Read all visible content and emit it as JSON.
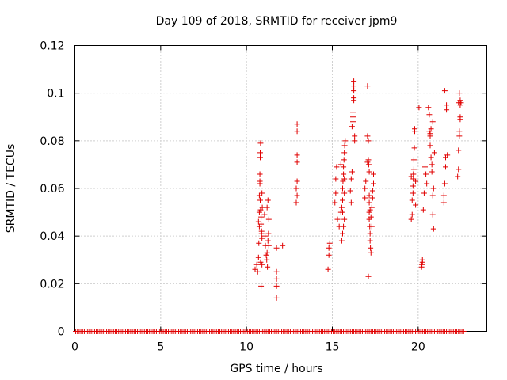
{
  "chart_data": {
    "type": "scatter",
    "title": "Day 109 of 2018, SRMTID for receiver jpm9",
    "xlabel": "GPS time / hours",
    "ylabel": "SRMTID / TECUs",
    "xlim": [
      0,
      24
    ],
    "ylim": [
      0,
      0.12
    ],
    "xticks": [
      0,
      5,
      10,
      15,
      20
    ],
    "xtick_labels": [
      "0",
      "5",
      "10",
      "15",
      "20"
    ],
    "yticks": [
      0,
      0.02,
      0.04,
      0.06,
      0.08,
      0.1,
      0.12
    ],
    "ytick_labels": [
      "0",
      "0.02",
      "0.04",
      "0.06",
      "0.08",
      "0.1",
      "0.12"
    ],
    "grid": true,
    "marker": "+",
    "series": [
      {
        "name": "SRMTID",
        "color": "#e00000",
        "baseline": {
          "x_start": 0.05,
          "x_end": 22.65,
          "x_step": 0.1,
          "y": 0
        },
        "points": [
          [
            10.5,
            0.026
          ],
          [
            10.6,
            0.028
          ],
          [
            10.65,
            0.025
          ],
          [
            10.7,
            0.031
          ],
          [
            10.72,
            0.037
          ],
          [
            10.75,
            0.044
          ],
          [
            10.75,
            0.05
          ],
          [
            10.75,
            0.057
          ],
          [
            10.78,
            0.063
          ],
          [
            10.8,
            0.073
          ],
          [
            10.82,
            0.079
          ],
          [
            10.8,
            0.075
          ],
          [
            10.78,
            0.062
          ],
          [
            10.8,
            0.055
          ],
          [
            10.82,
            0.051
          ],
          [
            10.85,
            0.048
          ],
          [
            10.85,
            0.045
          ],
          [
            10.88,
            0.041
          ],
          [
            10.9,
            0.039
          ],
          [
            10.82,
            0.029
          ],
          [
            10.9,
            0.028
          ],
          [
            10.85,
            0.019
          ],
          [
            10.88,
            0.042
          ],
          [
            10.9,
            0.058
          ],
          [
            10.78,
            0.066
          ],
          [
            10.92,
            0.052
          ],
          [
            10.7,
            0.046
          ],
          [
            11.05,
            0.049
          ],
          [
            11.08,
            0.04
          ],
          [
            11.1,
            0.036
          ],
          [
            11.15,
            0.032
          ],
          [
            11.2,
            0.033
          ],
          [
            11.22,
            0.027
          ],
          [
            11.25,
            0.038
          ],
          [
            11.28,
            0.041
          ],
          [
            11.3,
            0.036
          ],
          [
            11.2,
            0.052
          ],
          [
            11.25,
            0.055
          ],
          [
            11.3,
            0.047
          ],
          [
            11.18,
            0.03
          ],
          [
            11.75,
            0.035
          ],
          [
            11.75,
            0.025
          ],
          [
            11.75,
            0.022
          ],
          [
            11.75,
            0.019
          ],
          [
            11.75,
            0.014
          ],
          [
            12.1,
            0.036
          ],
          [
            12.9,
            0.054
          ],
          [
            12.9,
            0.06
          ],
          [
            12.95,
            0.063
          ],
          [
            12.95,
            0.057
          ],
          [
            12.95,
            0.071
          ],
          [
            12.95,
            0.074
          ],
          [
            12.95,
            0.084
          ],
          [
            12.95,
            0.087
          ],
          [
            14.75,
            0.026
          ],
          [
            14.8,
            0.032
          ],
          [
            14.8,
            0.035
          ],
          [
            14.85,
            0.037
          ],
          [
            15.15,
            0.054
          ],
          [
            15.2,
            0.058
          ],
          [
            15.2,
            0.064
          ],
          [
            15.25,
            0.069
          ],
          [
            15.3,
            0.047
          ],
          [
            15.4,
            0.044
          ],
          [
            15.5,
            0.05
          ],
          [
            15.55,
            0.052
          ],
          [
            15.6,
            0.055
          ],
          [
            15.6,
            0.06
          ],
          [
            15.62,
            0.063
          ],
          [
            15.65,
            0.066
          ],
          [
            15.65,
            0.069
          ],
          [
            15.68,
            0.072
          ],
          [
            15.7,
            0.075
          ],
          [
            15.72,
            0.078
          ],
          [
            15.75,
            0.08
          ],
          [
            15.7,
            0.058
          ],
          [
            15.7,
            0.047
          ],
          [
            15.65,
            0.044
          ],
          [
            15.6,
            0.041
          ],
          [
            15.55,
            0.038
          ],
          [
            15.6,
            0.05
          ],
          [
            15.7,
            0.064
          ],
          [
            15.5,
            0.07
          ],
          [
            16.05,
            0.059
          ],
          [
            16.1,
            0.064
          ],
          [
            16.15,
            0.067
          ],
          [
            16.15,
            0.086
          ],
          [
            16.2,
            0.088
          ],
          [
            16.2,
            0.09
          ],
          [
            16.2,
            0.092
          ],
          [
            16.25,
            0.097
          ],
          [
            16.25,
            0.098
          ],
          [
            16.25,
            0.101
          ],
          [
            16.25,
            0.103
          ],
          [
            16.25,
            0.105
          ],
          [
            16.3,
            0.08
          ],
          [
            16.3,
            0.082
          ],
          [
            16.1,
            0.054
          ],
          [
            16.9,
            0.056
          ],
          [
            16.9,
            0.06
          ],
          [
            16.95,
            0.063
          ],
          [
            17.05,
            0.103
          ],
          [
            17.05,
            0.082
          ],
          [
            17.1,
            0.08
          ],
          [
            17.1,
            0.072
          ],
          [
            17.12,
            0.07
          ],
          [
            17.15,
            0.067
          ],
          [
            17.15,
            0.057
          ],
          [
            17.15,
            0.054
          ],
          [
            17.15,
            0.05
          ],
          [
            17.15,
            0.047
          ],
          [
            17.18,
            0.044
          ],
          [
            17.2,
            0.041
          ],
          [
            17.2,
            0.038
          ],
          [
            17.22,
            0.035
          ],
          [
            17.25,
            0.033
          ],
          [
            17.25,
            0.048
          ],
          [
            17.3,
            0.044
          ],
          [
            17.3,
            0.052
          ],
          [
            17.35,
            0.056
          ],
          [
            17.35,
            0.059
          ],
          [
            17.4,
            0.062
          ],
          [
            17.4,
            0.066
          ],
          [
            17.1,
            0.023
          ],
          [
            17.05,
            0.071
          ],
          [
            17.2,
            0.051
          ],
          [
            19.6,
            0.047
          ],
          [
            19.65,
            0.049
          ],
          [
            19.65,
            0.055
          ],
          [
            19.7,
            0.058
          ],
          [
            19.7,
            0.061
          ],
          [
            19.72,
            0.064
          ],
          [
            19.72,
            0.066
          ],
          [
            19.75,
            0.068
          ],
          [
            19.75,
            0.072
          ],
          [
            19.78,
            0.077
          ],
          [
            19.8,
            0.084
          ],
          [
            19.8,
            0.085
          ],
          [
            19.85,
            0.053
          ],
          [
            19.85,
            0.063
          ],
          [
            19.6,
            0.065
          ],
          [
            20.05,
            0.094
          ],
          [
            20.2,
            0.027
          ],
          [
            20.22,
            0.028
          ],
          [
            20.25,
            0.03
          ],
          [
            20.25,
            0.029
          ],
          [
            20.3,
            0.051
          ],
          [
            20.35,
            0.058
          ],
          [
            20.4,
            0.069
          ],
          [
            20.45,
            0.066
          ],
          [
            20.5,
            0.062
          ],
          [
            20.6,
            0.094
          ],
          [
            20.65,
            0.091
          ],
          [
            20.65,
            0.084
          ],
          [
            20.7,
            0.082
          ],
          [
            20.7,
            0.078
          ],
          [
            20.75,
            0.073
          ],
          [
            20.8,
            0.07
          ],
          [
            20.8,
            0.067
          ],
          [
            20.85,
            0.057
          ],
          [
            20.85,
            0.049
          ],
          [
            20.9,
            0.043
          ],
          [
            20.9,
            0.06
          ],
          [
            20.95,
            0.075
          ],
          [
            20.7,
            0.083
          ],
          [
            20.75,
            0.085
          ],
          [
            20.85,
            0.088
          ],
          [
            21.5,
            0.054
          ],
          [
            21.5,
            0.057
          ],
          [
            21.55,
            0.062
          ],
          [
            21.6,
            0.069
          ],
          [
            21.6,
            0.073
          ],
          [
            21.65,
            0.093
          ],
          [
            21.65,
            0.095
          ],
          [
            21.55,
            0.101
          ],
          [
            21.7,
            0.074
          ],
          [
            22.3,
            0.065
          ],
          [
            22.35,
            0.068
          ],
          [
            22.35,
            0.076
          ],
          [
            22.4,
            0.082
          ],
          [
            22.4,
            0.084
          ],
          [
            22.45,
            0.089
          ],
          [
            22.45,
            0.09
          ],
          [
            22.45,
            0.095
          ],
          [
            22.45,
            0.097
          ],
          [
            22.4,
            0.1
          ],
          [
            22.5,
            0.096
          ],
          [
            22.35,
            0.096
          ]
        ]
      }
    ]
  }
}
